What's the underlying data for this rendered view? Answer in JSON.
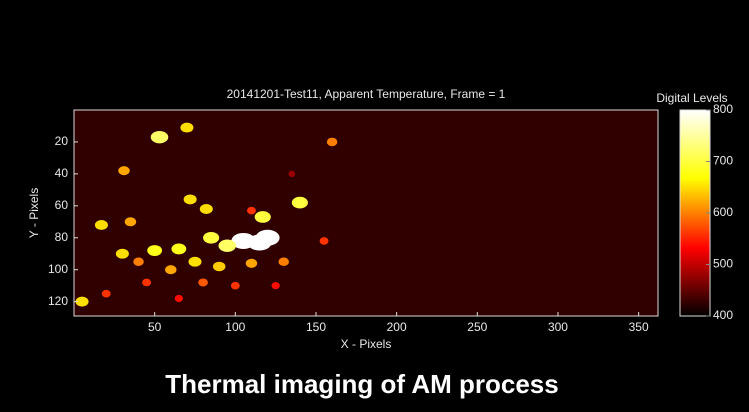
{
  "chart_data": {
    "type": "heatmap",
    "title": "20141201-Test11, Apparent Temperature,  Frame = 1",
    "x_label": "X - Pixels",
    "y_label": "Y - Pixels",
    "colorbar_label": "Digital Levels",
    "caption": "Thermal imaging of AM process",
    "xlim": [
      0,
      362
    ],
    "xticks": [
      50,
      100,
      150,
      200,
      250,
      300,
      350
    ],
    "ylim": [
      0,
      129
    ],
    "yticks": [
      20,
      40,
      60,
      80,
      100,
      120
    ],
    "y_reversed": true,
    "clim": [
      400,
      800
    ],
    "cticks": [
      400,
      500,
      600,
      700,
      800
    ],
    "colormap": "hot",
    "background_value": 425,
    "x": [
      53,
      70,
      160,
      31,
      135,
      140,
      72,
      82,
      110,
      17,
      35,
      117,
      105,
      115,
      120,
      95,
      85,
      65,
      50,
      30,
      40,
      75,
      60,
      90,
      110,
      130,
      45,
      80,
      100,
      5,
      20,
      155,
      125,
      65
    ],
    "y": [
      17,
      11,
      20,
      38,
      40,
      58,
      56,
      62,
      63,
      72,
      70,
      67,
      82,
      83,
      80,
      85,
      80,
      87,
      88,
      90,
      95,
      95,
      100,
      98,
      96,
      95,
      108,
      108,
      110,
      120,
      115,
      82,
      110,
      118
    ],
    "values": [
      720,
      650,
      600,
      620,
      480,
      700,
      650,
      650,
      560,
      650,
      620,
      700,
      800,
      800,
      800,
      720,
      700,
      680,
      680,
      650,
      600,
      650,
      620,
      640,
      620,
      600,
      560,
      580,
      560,
      650,
      560,
      560,
      540,
      540
    ]
  }
}
